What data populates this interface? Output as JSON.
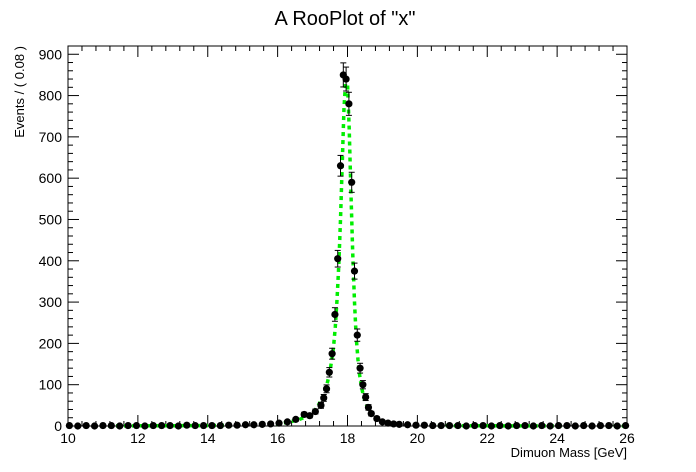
{
  "chart_data": {
    "type": "scatter",
    "title": "A RooPlot of \"x\"",
    "xlabel": "Dimuon Mass [GeV]",
    "ylabel": "Events / ( 0.08 )",
    "xlim": [
      10,
      26
    ],
    "ylim": [
      0,
      920
    ],
    "grid": false,
    "legend": "none",
    "xticks": [
      "10",
      "12",
      "14",
      "16",
      "18",
      "20",
      "22",
      "24",
      "26"
    ],
    "yticks": [
      "0",
      "100",
      "200",
      "300",
      "400",
      "500",
      "600",
      "700",
      "800",
      "900"
    ],
    "series": [
      {
        "kind": "data-points-with-errors",
        "color": "#000000",
        "x": [
          10.04,
          10.28,
          10.52,
          10.76,
          11.0,
          11.24,
          11.48,
          11.72,
          11.96,
          12.2,
          12.44,
          12.68,
          12.92,
          13.16,
          13.4,
          13.64,
          13.88,
          14.12,
          14.36,
          14.6,
          14.84,
          15.08,
          15.32,
          15.56,
          15.8,
          16.04,
          16.28,
          16.52,
          16.76,
          16.92,
          17.08,
          17.24,
          17.32,
          17.4,
          17.48,
          17.56,
          17.64,
          17.72,
          17.8,
          17.88,
          17.96,
          18.04,
          18.12,
          18.2,
          18.28,
          18.36,
          18.44,
          18.52,
          18.6,
          18.68,
          18.84,
          19.0,
          19.16,
          19.32,
          19.48,
          19.72,
          19.96,
          20.2,
          20.44,
          20.68,
          20.92,
          21.16,
          21.4,
          21.64,
          21.88,
          22.12,
          22.36,
          22.6,
          22.84,
          23.08,
          23.32,
          23.56,
          23.8,
          24.04,
          24.28,
          24.52,
          24.76,
          25.0,
          25.24,
          25.48,
          25.72,
          25.96
        ],
        "y": [
          1,
          0,
          1,
          0,
          1,
          1,
          0,
          1,
          1,
          0,
          1,
          1,
          1,
          0,
          2,
          1,
          1,
          1,
          1,
          2,
          2,
          3,
          3,
          4,
          5,
          7,
          10,
          16,
          28,
          25,
          35,
          50,
          68,
          90,
          130,
          175,
          270,
          405,
          630,
          850,
          840,
          780,
          590,
          375,
          220,
          140,
          100,
          70,
          45,
          30,
          18,
          10,
          7,
          5,
          4,
          3,
          2,
          2,
          1,
          1,
          1,
          1,
          0,
          1,
          1,
          0,
          1,
          0,
          1,
          1,
          0,
          1,
          0,
          1,
          1,
          0,
          1,
          0,
          1,
          1,
          0,
          1
        ]
      },
      {
        "kind": "fit-curve",
        "color": "#00ee00",
        "style": "dashed",
        "x": [
          10.0,
          12.0,
          14.0,
          15.0,
          15.5,
          16.0,
          16.3,
          16.6,
          16.8,
          17.0,
          17.1,
          17.2,
          17.3,
          17.4,
          17.5,
          17.6,
          17.65,
          17.7,
          17.75,
          17.8,
          17.85,
          17.9,
          17.95,
          18.0,
          18.05,
          18.1,
          18.15,
          18.2,
          18.25,
          18.3,
          18.35,
          18.4,
          18.45,
          18.5,
          18.6,
          18.7,
          18.8,
          18.9,
          19.0,
          19.2,
          19.4,
          19.7,
          20.0,
          20.5,
          21.0,
          22.0,
          24.0,
          26.0
        ],
        "y": [
          0,
          0.5,
          1,
          2,
          3,
          5,
          9,
          15,
          22,
          33,
          42,
          55,
          72,
          96,
          132,
          190,
          240,
          305,
          390,
          500,
          640,
          770,
          840,
          830,
          720,
          560,
          420,
          300,
          215,
          160,
          122,
          95,
          75,
          60,
          40,
          28,
          20,
          15,
          11,
          7,
          4.5,
          3,
          2,
          1.2,
          0.8,
          0.4,
          0.2,
          0.1
        ]
      }
    ]
  }
}
